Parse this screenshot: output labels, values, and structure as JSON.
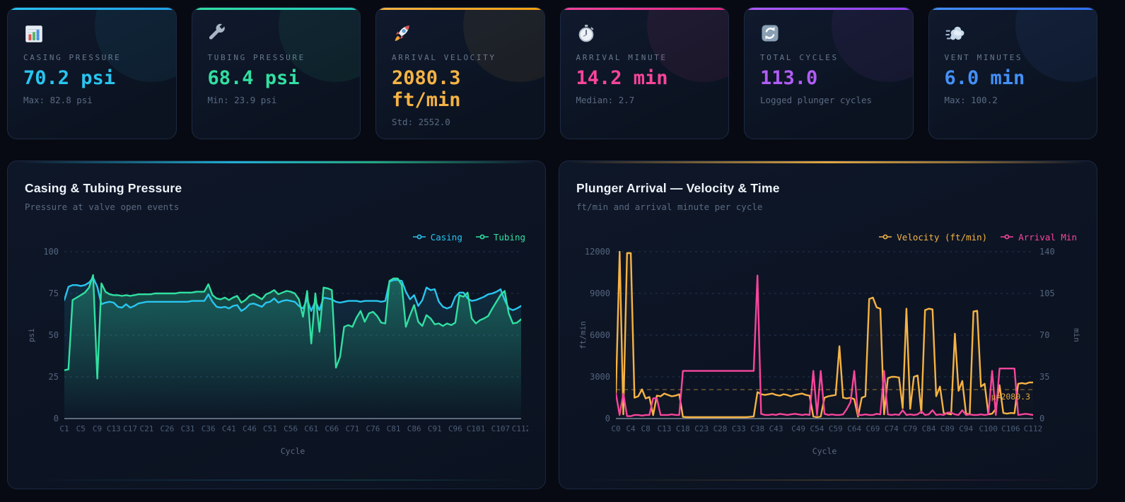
{
  "theme": {
    "page_bg": "#070a12",
    "card_bg": "#0d1626",
    "card_border": "#1d2a44",
    "muted_text": "#5a6a82",
    "label_text": "#66788f",
    "title_text": "#eef3f9",
    "axis_text": "#4c5d78",
    "grid_color": "#223350"
  },
  "kpi": {
    "cards": [
      {
        "id": "casing-pressure",
        "icon": "bar-chart-icon",
        "label": "CASING PRESSURE",
        "value": "70.2 psi",
        "sub": "Max: 82.8 psi",
        "accent": "#29c5f0",
        "accent2": "#1f9fe8"
      },
      {
        "id": "tubing-pressure",
        "icon": "wrench-icon",
        "label": "TUBING PRESSURE",
        "value": "68.4 psi",
        "sub": "Min: 23.9 psi",
        "accent": "#31e0a1",
        "accent2": "#21c9be"
      },
      {
        "id": "arrival-velocity",
        "icon": "rocket-icon",
        "label": "ARRIVAL VELOCITY",
        "value": "2080.3 ft/min",
        "sub": "Std: 2552.0",
        "accent": "#f6b344",
        "accent2": "#f59e0b"
      },
      {
        "id": "arrival-minute",
        "icon": "stopwatch-icon",
        "label": "ARRIVAL MINUTE",
        "value": "14.2 min",
        "sub": "Median: 2.7",
        "accent": "#f8459c",
        "accent2": "#e0257f"
      },
      {
        "id": "total-cycles",
        "icon": "refresh-icon",
        "label": "TOTAL CYCLES",
        "value": "113.0",
        "sub": "Logged plunger cycles",
        "accent": "#b15cf6",
        "accent2": "#8b3df0"
      },
      {
        "id": "vent-minutes",
        "icon": "wind-icon",
        "label": "VENT MINUTES",
        "value": "6.0 min",
        "sub": "Max: 100.2",
        "accent": "#4490f8",
        "accent2": "#2f6ef0"
      }
    ]
  },
  "chart_data": [
    {
      "type": "line",
      "title": "Casing & Tubing Pressure",
      "subtitle": "Pressure at valve open events",
      "xlabel": "Cycle",
      "ylabel": "psi",
      "ylim": [
        0,
        100
      ],
      "yticks": [
        0,
        25,
        50,
        75,
        100
      ],
      "grid": true,
      "legend_position": "top-right",
      "x_start_cycle": 1,
      "xticks": [
        "C1",
        "C5",
        "C9",
        "C13",
        "C17",
        "C21",
        "C26",
        "C31",
        "C36",
        "C41",
        "C46",
        "C51",
        "C56",
        "C61",
        "C66",
        "C71",
        "C76",
        "C81",
        "C86",
        "C91",
        "C96",
        "C101",
        "C107",
        "C112"
      ],
      "series": [
        {
          "name": "Casing",
          "color": "#29c5f0",
          "axis": "left",
          "fill_opacity": 0.14,
          "values": [
            71,
            79,
            80,
            80,
            79.5,
            80,
            81.5,
            84.5,
            79,
            68.5,
            69.5,
            70,
            69.5,
            67,
            66.5,
            68.5,
            66.5,
            67.5,
            69,
            69.5,
            70,
            70,
            70,
            70,
            70,
            70,
            70,
            70,
            70,
            70,
            70,
            70.5,
            70.5,
            70.5,
            70.5,
            74.5,
            70,
            67,
            66.5,
            67,
            66,
            67.5,
            68,
            64.5,
            66,
            68.5,
            69,
            68,
            67,
            69.5,
            70,
            72,
            69.5,
            70.5,
            71,
            70.5,
            70,
            67.5,
            66,
            71.5,
            64.5,
            70.5,
            65,
            72.5,
            72,
            71.5,
            70,
            69.5,
            70,
            70.5,
            70.5,
            70.5,
            70,
            70.5,
            70.5,
            70.5,
            70.5,
            70,
            70.5,
            82,
            83,
            83,
            82.5,
            76,
            71.5,
            74,
            67.5,
            71,
            78.5,
            77,
            77.5,
            70,
            67,
            66,
            67,
            73,
            75.5,
            75.5,
            72,
            70.5,
            71,
            72,
            73,
            74.5,
            75,
            76,
            77.5,
            71,
            66,
            65,
            66,
            67.5
          ]
        },
        {
          "name": "Tubing",
          "color": "#31e0a1",
          "axis": "left",
          "fill_opacity": 0.3,
          "values": [
            29,
            29.5,
            71,
            72.5,
            74,
            75.5,
            78.5,
            86,
            24,
            81,
            76,
            74.5,
            74,
            74,
            73.5,
            74,
            73.5,
            74,
            74.5,
            74.5,
            74.5,
            74.5,
            75,
            75,
            75,
            75,
            75,
            75,
            75.5,
            75.5,
            75.5,
            75.5,
            76,
            76,
            76,
            80.5,
            74,
            72,
            71.5,
            72.5,
            71,
            72.5,
            73.5,
            69.5,
            71,
            73.5,
            74.5,
            73,
            71.5,
            74.5,
            75.5,
            77,
            74.5,
            75.5,
            76.5,
            76,
            75,
            71.5,
            61,
            76.5,
            45,
            75,
            52,
            78.5,
            78,
            77,
            30.5,
            37,
            55,
            56,
            55,
            60.5,
            64.5,
            58,
            63,
            64,
            61.5,
            57.5,
            57,
            82.5,
            84,
            84,
            80,
            55,
            62,
            68,
            58,
            55.5,
            62,
            60,
            56.5,
            57,
            55.5,
            57,
            56,
            57.5,
            74,
            73,
            75.5,
            60,
            57,
            59,
            60,
            61.5,
            66,
            70,
            74,
            76.5,
            63,
            57,
            57.5,
            59.5
          ]
        }
      ]
    },
    {
      "type": "line",
      "title": "Plunger Arrival — Velocity & Time",
      "subtitle": "ft/min and arrival minute per cycle",
      "xlabel": "Cycle",
      "ylabel": "ft/min",
      "ylabel_right": "min",
      "ylim": [
        0,
        12000
      ],
      "yticks": [
        0,
        3000,
        6000,
        9000,
        12000
      ],
      "ylim_right": [
        0,
        140
      ],
      "yticks_right": [
        0,
        35,
        70,
        105,
        140
      ],
      "grid": true,
      "legend_position": "top-right",
      "x_start_cycle": 0,
      "xticks": [
        "C0",
        "C4",
        "C8",
        "C13",
        "C18",
        "C23",
        "C28",
        "C33",
        "C38",
        "C43",
        "C49",
        "C54",
        "C59",
        "C64",
        "C69",
        "C74",
        "C79",
        "C84",
        "C89",
        "C94",
        "C100",
        "C106",
        "C112"
      ],
      "mean_line": {
        "value": 2080.3,
        "label": "μ=2080.3",
        "color": "#f6b344"
      },
      "series": [
        {
          "name": "Velocity (ft/min)",
          "color": "#f6b344",
          "axis": "left",
          "fill_opacity": 0.07,
          "values": [
            1800,
            12000,
            300,
            11900,
            11900,
            1500,
            1600,
            2100,
            1450,
            1550,
            250,
            1650,
            1600,
            1800,
            1700,
            1600,
            1650,
            1750,
            120,
            100,
            100,
            100,
            100,
            100,
            100,
            100,
            100,
            100,
            100,
            100,
            100,
            100,
            100,
            100,
            100,
            100,
            120,
            150,
            1900,
            1750,
            1700,
            1750,
            1800,
            1700,
            1650,
            1750,
            1700,
            1600,
            1700,
            1750,
            1800,
            1700,
            1650,
            150,
            100,
            150,
            1500,
            1600,
            1650,
            1700,
            5200,
            1500,
            1450,
            1500,
            1400,
            150,
            1500,
            1600,
            8600,
            8700,
            8000,
            7900,
            300,
            2900,
            3000,
            3000,
            2950,
            750,
            7900,
            700,
            3000,
            3100,
            400,
            7800,
            7900,
            7850,
            1600,
            2300,
            400,
            350,
            300,
            6100,
            2000,
            2700,
            350,
            300,
            7700,
            7750,
            2300,
            2500,
            300,
            350,
            700,
            2400,
            400,
            350,
            400,
            380,
            2500,
            2550,
            2500,
            2600,
            2600
          ]
        },
        {
          "name": "Arrival Min",
          "color": "#f8459c",
          "axis": "right",
          "values": [
            21,
            3,
            21,
            2,
            2,
            3,
            3,
            2.5,
            3,
            3,
            17,
            17,
            3,
            3,
            3,
            3.5,
            3,
            3,
            40,
            40,
            40,
            40,
            40,
            40,
            40,
            40,
            40,
            40,
            40,
            40,
            40,
            40,
            40,
            40,
            40,
            40,
            40,
            40,
            120,
            4,
            3,
            3,
            3.5,
            3,
            4,
            3.5,
            3,
            3.5,
            4,
            3.5,
            3,
            3.5,
            3,
            40,
            3,
            40,
            4,
            3,
            3.5,
            3,
            3,
            3.5,
            8,
            14,
            40,
            3,
            3,
            3.5,
            3,
            3,
            4,
            3.5,
            40,
            3.5,
            3,
            3.5,
            3,
            7,
            3,
            3.5,
            3,
            3.5,
            6,
            3,
            3.5,
            7,
            3,
            3.5,
            3,
            5,
            5,
            3.5,
            3,
            7,
            3,
            3.5,
            3,
            3,
            3.5,
            3,
            3.5,
            40,
            3,
            42,
            42,
            42,
            42,
            42,
            3,
            3.5,
            4,
            3.5,
            3
          ]
        }
      ]
    }
  ]
}
